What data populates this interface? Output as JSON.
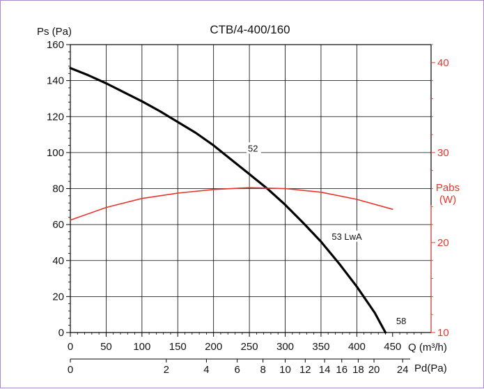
{
  "chart_data": {
    "type": "line",
    "title": "CTB/4-400/160",
    "ylabel": "Ps (Pa)",
    "xlabel": "Q (m³/h)",
    "x2label": "Pd(Pa)",
    "y2label_line1": "Pabs",
    "y2label_line2": "(W)",
    "xlim": [
      0,
      450
    ],
    "ylim": [
      0,
      160
    ],
    "y2lim": [
      10,
      42
    ],
    "grid": true,
    "x_ticks": [
      0,
      50,
      100,
      150,
      200,
      250,
      300,
      350,
      400,
      450
    ],
    "y_ticks": [
      0,
      20,
      40,
      60,
      80,
      100,
      120,
      140,
      160
    ],
    "y2_ticks": [
      10,
      20,
      30,
      40
    ],
    "pd_ticks": [
      {
        "label": "0",
        "q": 0
      },
      {
        "label": "2",
        "q": 134
      },
      {
        "label": "4",
        "q": 190
      },
      {
        "label": "6",
        "q": 233
      },
      {
        "label": "8",
        "q": 269
      },
      {
        "label": "10",
        "q": 300
      },
      {
        "label": "12",
        "q": 328
      },
      {
        "label": "14",
        "q": 355
      },
      {
        "label": "16",
        "q": 379
      },
      {
        "label": "18",
        "q": 402
      },
      {
        "label": "20",
        "q": 424
      },
      {
        "label": "24",
        "q": 464
      }
    ],
    "series": [
      {
        "axis": "left",
        "color": "#000000",
        "x": [
          0,
          25,
          50,
          75,
          100,
          125,
          150,
          175,
          200,
          225,
          250,
          275,
          300,
          325,
          350,
          375,
          400,
          425,
          440
        ],
        "y": [
          147,
          143,
          138.5,
          133.5,
          128.5,
          123,
          117,
          111,
          104,
          96,
          88,
          80,
          71,
          61,
          50.5,
          38.5,
          25.5,
          11,
          0
        ]
      },
      {
        "axis": "right",
        "color": "#e8342a",
        "x": [
          0,
          50,
          100,
          150,
          200,
          250,
          300,
          350,
          400,
          450
        ],
        "y": [
          22.5,
          23.9,
          24.9,
          25.5,
          25.9,
          26.1,
          26.0,
          25.6,
          24.8,
          23.7
        ]
      }
    ],
    "annotations": [
      {
        "text": "52",
        "x": 248,
        "y": 101
      },
      {
        "text": "53 LwA",
        "x": 365,
        "y": 52
      },
      {
        "text": "58",
        "x": 455,
        "y": 5
      }
    ]
  }
}
